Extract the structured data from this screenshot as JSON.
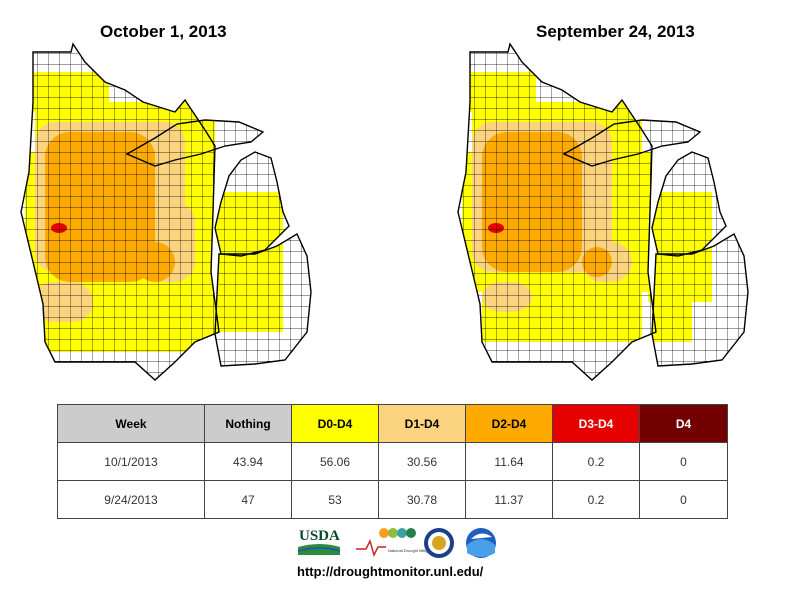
{
  "titles": {
    "left": "October 1, 2013",
    "right": "September 24, 2013"
  },
  "maps": {
    "left": {
      "region": "Midwest",
      "date": "October 1, 2013"
    },
    "right": {
      "region": "Midwest",
      "date": "September 24, 2013"
    }
  },
  "legend_colors": {
    "nothing": "#ffffff",
    "d0": "#ffff00",
    "d1": "#fcd37f",
    "d2": "#ffaa00",
    "d3": "#e60000",
    "d4": "#730000"
  },
  "table": {
    "headers": [
      {
        "label": "Week",
        "bg": "#cccccc",
        "fg": "#000000"
      },
      {
        "label": "Nothing",
        "bg": "#cccccc",
        "fg": "#000000"
      },
      {
        "label": "D0-D4",
        "bg": "#ffff00",
        "fg": "#000000"
      },
      {
        "label": "D1-D4",
        "bg": "#fcd37f",
        "fg": "#000000"
      },
      {
        "label": "D2-D4",
        "bg": "#ffaa00",
        "fg": "#000000"
      },
      {
        "label": "D3-D4",
        "bg": "#e60000",
        "fg": "#ffffff"
      },
      {
        "label": "D4",
        "bg": "#730000",
        "fg": "#ffffff"
      }
    ],
    "rows": [
      [
        "10/1/2013",
        "43.94",
        "56.06",
        "30.56",
        "11.64",
        "0.2",
        "0"
      ],
      [
        "9/24/2013",
        "47",
        "53",
        "30.78",
        "11.37",
        "0.2",
        "0"
      ]
    ]
  },
  "logos": {
    "usda": "USDA",
    "ndmc": "National Drought Mitigation Center"
  },
  "url": "http://droughtmonitor.unl.edu/"
}
